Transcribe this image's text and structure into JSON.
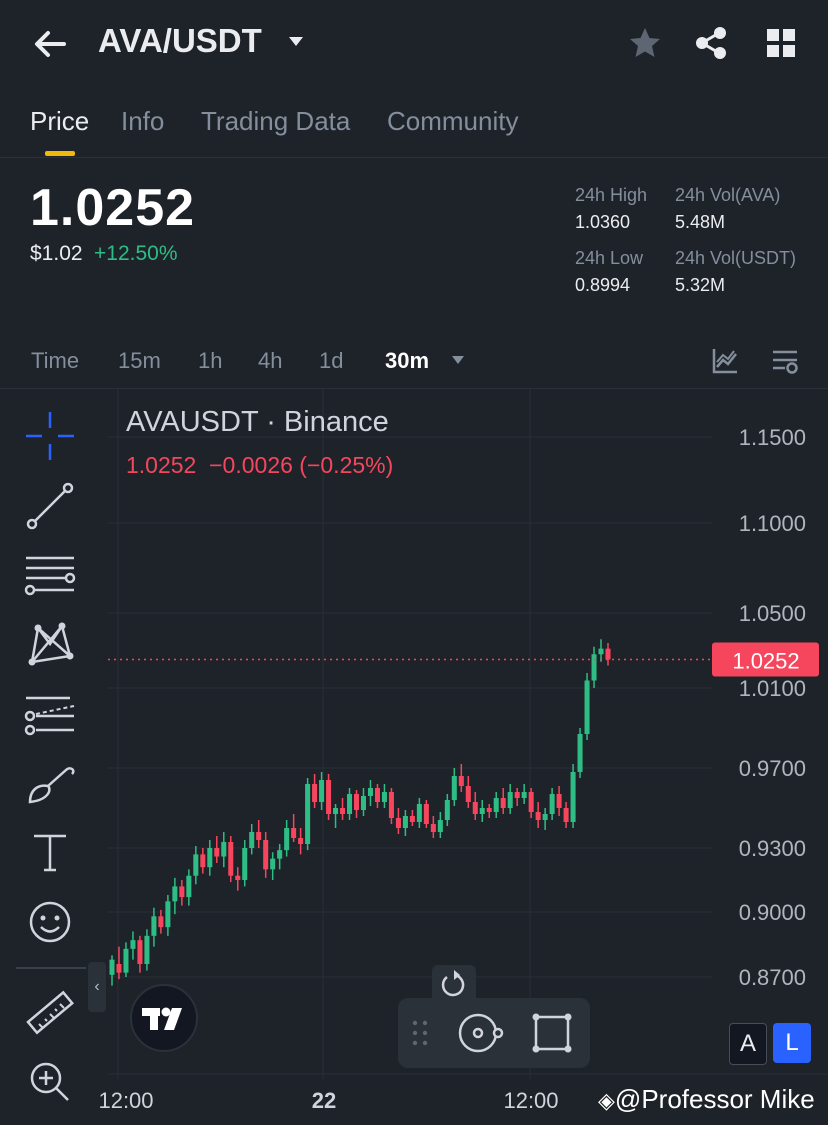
{
  "header": {
    "back_icon": "arrow-left-icon",
    "title": "AVA/USDT",
    "favorite_icon": "star-icon",
    "share_icon": "share-icon",
    "menu_icon": "grid-icon"
  },
  "tabs": [
    {
      "label": "Price",
      "active": true
    },
    {
      "label": "Info",
      "active": false
    },
    {
      "label": "Trading Data",
      "active": false
    },
    {
      "label": "Community",
      "active": false
    }
  ],
  "ticker": {
    "price": "1.0252",
    "usd_price": "$1.02",
    "change_pct": "+12.50%",
    "high_label": "24h High",
    "high": "1.0360",
    "low_label": "24h Low",
    "low": "0.8994",
    "vol_base_label": "24h Vol(AVA)",
    "vol_base": "5.48M",
    "vol_quote_label": "24h Vol(USDT)",
    "vol_quote": "5.32M"
  },
  "intervals": {
    "items": [
      "Time",
      "15m",
      "1h",
      "4h",
      "1d",
      "30m"
    ],
    "selected": "30m"
  },
  "chart_legend": {
    "title": "AVAUSDT · Binance",
    "values": "1.0252  −0.0026 (−0.25%)"
  },
  "colors": {
    "up": "#2ebd85",
    "down": "#f6465d",
    "accent": "#f0b90b",
    "background": "#1e2329",
    "selected_button": "#2962ff"
  },
  "chart_buttons": {
    "auto": "A",
    "log": "L"
  },
  "watermark": "@Professor Mike",
  "chart_data": {
    "type": "candlestick",
    "symbol": "AVAUSDT",
    "exchange": "Binance",
    "interval": "30m",
    "y_ticks": [
      "1.1500",
      "1.1000",
      "1.0500",
      "1.0100",
      "0.9700",
      "0.9300",
      "0.9000",
      "0.8700"
    ],
    "x_ticks": [
      "12:00",
      "22",
      "12:00"
    ],
    "last_price": "1.0252",
    "last_price_value": 1.0252,
    "ylim": [
      0.845,
      1.17
    ],
    "candles": [
      [
        0.871,
        0.88,
        0.866,
        0.878
      ],
      [
        0.876,
        0.884,
        0.869,
        0.872
      ],
      [
        0.872,
        0.886,
        0.87,
        0.883
      ],
      [
        0.883,
        0.891,
        0.878,
        0.887
      ],
      [
        0.887,
        0.889,
        0.872,
        0.876
      ],
      [
        0.876,
        0.892,
        0.873,
        0.889
      ],
      [
        0.889,
        0.902,
        0.884,
        0.898
      ],
      [
        0.898,
        0.901,
        0.89,
        0.893
      ],
      [
        0.893,
        0.908,
        0.889,
        0.905
      ],
      [
        0.905,
        0.916,
        0.899,
        0.912
      ],
      [
        0.912,
        0.915,
        0.903,
        0.907
      ],
      [
        0.907,
        0.92,
        0.903,
        0.917
      ],
      [
        0.917,
        0.931,
        0.913,
        0.927
      ],
      [
        0.927,
        0.93,
        0.918,
        0.921
      ],
      [
        0.921,
        0.934,
        0.917,
        0.93
      ],
      [
        0.93,
        0.936,
        0.923,
        0.926
      ],
      [
        0.926,
        0.938,
        0.921,
        0.933
      ],
      [
        0.933,
        0.936,
        0.914,
        0.917
      ],
      [
        0.917,
        0.921,
        0.91,
        0.915
      ],
      [
        0.915,
        0.934,
        0.912,
        0.93
      ],
      [
        0.93,
        0.942,
        0.927,
        0.938
      ],
      [
        0.938,
        0.944,
        0.93,
        0.934
      ],
      [
        0.934,
        0.938,
        0.916,
        0.92
      ],
      [
        0.92,
        0.928,
        0.915,
        0.925
      ],
      [
        0.925,
        0.932,
        0.92,
        0.929
      ],
      [
        0.929,
        0.944,
        0.926,
        0.94
      ],
      [
        0.94,
        0.947,
        0.933,
        0.935
      ],
      [
        0.935,
        0.94,
        0.927,
        0.932
      ],
      [
        0.932,
        0.965,
        0.929,
        0.962
      ],
      [
        0.962,
        0.967,
        0.95,
        0.953
      ],
      [
        0.953,
        0.968,
        0.949,
        0.964
      ],
      [
        0.964,
        0.967,
        0.944,
        0.947
      ],
      [
        0.947,
        0.952,
        0.94,
        0.95
      ],
      [
        0.95,
        0.955,
        0.944,
        0.947
      ],
      [
        0.947,
        0.96,
        0.944,
        0.957
      ],
      [
        0.957,
        0.959,
        0.945,
        0.949
      ],
      [
        0.949,
        0.96,
        0.946,
        0.956
      ],
      [
        0.956,
        0.964,
        0.951,
        0.96
      ],
      [
        0.96,
        0.962,
        0.95,
        0.953
      ],
      [
        0.953,
        0.962,
        0.95,
        0.958
      ],
      [
        0.958,
        0.96,
        0.942,
        0.945
      ],
      [
        0.945,
        0.95,
        0.937,
        0.94
      ],
      [
        0.94,
        0.949,
        0.936,
        0.946
      ],
      [
        0.946,
        0.949,
        0.941,
        0.943
      ],
      [
        0.943,
        0.955,
        0.94,
        0.952
      ],
      [
        0.952,
        0.954,
        0.94,
        0.942
      ],
      [
        0.942,
        0.946,
        0.935,
        0.938
      ],
      [
        0.938,
        0.948,
        0.935,
        0.944
      ],
      [
        0.944,
        0.957,
        0.941,
        0.954
      ],
      [
        0.954,
        0.97,
        0.951,
        0.966
      ],
      [
        0.966,
        0.972,
        0.958,
        0.961
      ],
      [
        0.961,
        0.966,
        0.95,
        0.953
      ],
      [
        0.953,
        0.958,
        0.944,
        0.947
      ],
      [
        0.947,
        0.954,
        0.943,
        0.95
      ],
      [
        0.95,
        0.952,
        0.945,
        0.948
      ],
      [
        0.948,
        0.958,
        0.945,
        0.955
      ],
      [
        0.955,
        0.96,
        0.947,
        0.95
      ],
      [
        0.95,
        0.962,
        0.947,
        0.958
      ],
      [
        0.958,
        0.96,
        0.951,
        0.955
      ],
      [
        0.955,
        0.962,
        0.952,
        0.958
      ],
      [
        0.958,
        0.96,
        0.945,
        0.948
      ],
      [
        0.948,
        0.953,
        0.94,
        0.944
      ],
      [
        0.944,
        0.95,
        0.939,
        0.947
      ],
      [
        0.947,
        0.96,
        0.944,
        0.957
      ],
      [
        0.957,
        0.961,
        0.946,
        0.95
      ],
      [
        0.95,
        0.953,
        0.94,
        0.943
      ],
      [
        0.943,
        0.972,
        0.94,
        0.968
      ],
      [
        0.968,
        0.99,
        0.965,
        0.987
      ],
      [
        0.987,
        1.018,
        0.984,
        1.014
      ],
      [
        1.014,
        1.032,
        1.01,
        1.028
      ],
      [
        1.028,
        1.036,
        1.024,
        1.031
      ],
      [
        1.031,
        1.034,
        1.022,
        1.0252
      ]
    ]
  }
}
